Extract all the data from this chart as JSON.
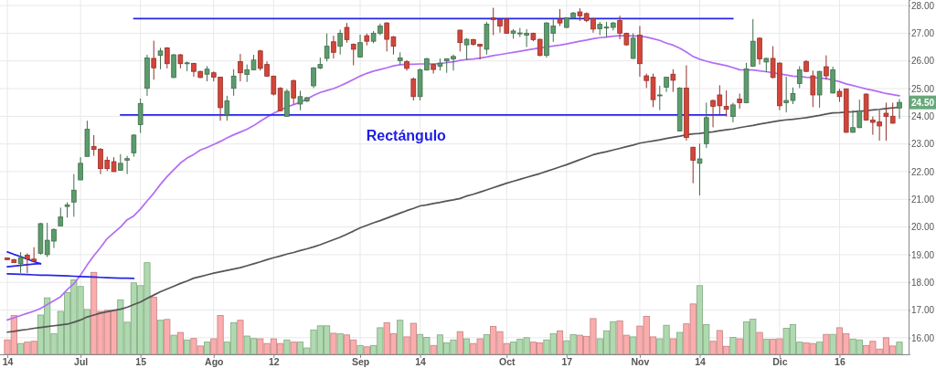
{
  "chart_data": {
    "type": "candlestick",
    "categories": [
      "14",
      null,
      null,
      null,
      null,
      null,
      null,
      null,
      null,
      null,
      null,
      "Jul",
      null,
      null,
      null,
      null,
      null,
      null,
      null,
      null,
      "15",
      null,
      null,
      null,
      null,
      null,
      null,
      null,
      null,
      null,
      null,
      "Ago",
      null,
      null,
      null,
      null,
      null,
      null,
      null,
      null,
      "12",
      null,
      null,
      null,
      null,
      null,
      null,
      null,
      null,
      null,
      null,
      null,
      null,
      "Sep",
      null,
      null,
      null,
      null,
      null,
      null,
      null,
      null,
      "14",
      null,
      null,
      null,
      null,
      null,
      null,
      null,
      null,
      null,
      null,
      null,
      null,
      "Oct",
      null,
      null,
      null,
      null,
      null,
      null,
      null,
      null,
      "17",
      null,
      null,
      null,
      null,
      null,
      null,
      null,
      null,
      null,
      null,
      "Nov",
      null,
      null,
      null,
      null,
      null,
      null,
      null,
      null,
      "14",
      null,
      null,
      null,
      null,
      null,
      null,
      null,
      null,
      null,
      null,
      null,
      "Dic",
      null,
      null,
      null,
      null,
      null,
      null,
      null,
      null,
      "16",
      null,
      null,
      null,
      null,
      null,
      null,
      null,
      null,
      null
    ],
    "ohlc": [
      [
        18.88,
        18.9,
        18.8,
        18.82
      ],
      [
        18.82,
        18.85,
        18.7,
        18.71
      ],
      [
        18.67,
        19.09,
        18.34,
        18.89
      ],
      [
        18.98,
        19.05,
        18.34,
        18.84
      ],
      [
        18.84,
        19.27,
        18.76,
        18.76
      ],
      [
        19.05,
        20.15,
        19.0,
        20.12
      ],
      [
        19.0,
        20.15,
        18.91,
        19.52
      ],
      [
        19.49,
        19.95,
        19.24,
        19.91
      ],
      [
        20.04,
        20.7,
        20.04,
        20.36
      ],
      [
        20.74,
        20.89,
        20.34,
        20.8
      ],
      [
        20.9,
        21.91,
        20.37,
        21.33
      ],
      [
        21.7,
        22.52,
        21.7,
        22.3
      ],
      [
        22.55,
        23.84,
        22.55,
        23.53
      ],
      [
        22.91,
        23.32,
        22.57,
        22.8
      ],
      [
        22.81,
        22.85,
        21.91,
        22.11
      ],
      [
        22.41,
        22.54,
        22.02,
        22.11
      ],
      [
        22.36,
        22.52,
        22.0,
        22.0
      ],
      [
        22.05,
        22.63,
        22.05,
        22.3
      ],
      [
        22.41,
        22.57,
        21.91,
        22.47
      ],
      [
        22.68,
        23.35,
        22.54,
        23.32
      ],
      [
        23.7,
        24.64,
        23.4,
        24.46
      ],
      [
        25.01,
        26.22,
        24.74,
        26.11
      ],
      [
        26.09,
        26.73,
        25.32,
        25.75
      ],
      [
        26.2,
        26.47,
        25.7,
        26.36
      ],
      [
        26.47,
        26.5,
        25.73,
        25.9
      ],
      [
        25.4,
        26.25,
        25.38,
        26.22
      ],
      [
        26.22,
        26.25,
        25.73,
        25.9
      ],
      [
        25.92,
        25.98,
        25.63,
        25.93
      ],
      [
        25.91,
        25.93,
        25.43,
        25.62
      ],
      [
        25.62,
        25.64,
        25.38,
        25.4
      ],
      [
        25.52,
        25.81,
        25.26,
        25.7
      ],
      [
        25.57,
        25.62,
        25.26,
        25.41
      ],
      [
        25.41,
        25.43,
        23.84,
        24.31
      ],
      [
        24.05,
        24.74,
        23.84,
        24.56
      ],
      [
        25.01,
        25.7,
        24.74,
        25.45
      ],
      [
        25.97,
        26.25,
        25.26,
        25.57
      ],
      [
        25.51,
        25.87,
        25.24,
        25.68
      ],
      [
        25.68,
        26.22,
        25.66,
        26.03
      ],
      [
        26.36,
        26.4,
        25.65,
        25.73
      ],
      [
        25.87,
        25.98,
        25.42,
        25.45
      ],
      [
        25.45,
        25.47,
        24.75,
        24.8
      ],
      [
        25.01,
        25.05,
        24.18,
        24.2
      ],
      [
        24.0,
        24.98,
        23.98,
        24.9
      ],
      [
        25.29,
        25.32,
        24.44,
        24.66
      ],
      [
        24.44,
        24.92,
        24.22,
        24.71
      ],
      [
        24.55,
        24.7,
        24.51,
        24.67
      ],
      [
        25.1,
        25.77,
        25.02,
        25.75
      ],
      [
        25.74,
        26.12,
        25.7,
        25.87
      ],
      [
        26.09,
        26.99,
        25.98,
        26.53
      ],
      [
        26.69,
        26.91,
        26.09,
        26.31
      ],
      [
        26.53,
        27.13,
        26.23,
        27.0
      ],
      [
        27.21,
        27.37,
        26.66,
        26.77
      ],
      [
        26.6,
        26.63,
        25.84,
        26.42
      ],
      [
        26.14,
        26.95,
        26.12,
        26.66
      ],
      [
        26.91,
        26.99,
        26.56,
        26.71
      ],
      [
        26.71,
        27.08,
        26.64,
        27.0
      ],
      [
        27.0,
        27.35,
        26.93,
        27.26
      ],
      [
        27.37,
        27.4,
        26.34,
        26.78
      ],
      [
        26.87,
        26.9,
        26.23,
        26.53
      ],
      [
        26.01,
        26.31,
        25.87,
        26.11
      ],
      [
        25.97,
        26.03,
        25.65,
        25.73
      ],
      [
        25.35,
        25.4,
        24.57,
        24.71
      ],
      [
        24.71,
        25.73,
        24.57,
        25.68
      ],
      [
        25.67,
        26.11,
        25.65,
        26.08
      ],
      [
        25.87,
        25.9,
        25.54,
        25.69
      ],
      [
        25.81,
        26.09,
        25.65,
        25.92
      ],
      [
        26.0,
        26.09,
        25.57,
        26.08
      ],
      [
        26.07,
        26.23,
        25.65,
        26.16
      ],
      [
        27.11,
        27.13,
        26.34,
        26.66
      ],
      [
        26.58,
        26.82,
        26.03,
        26.78
      ],
      [
        26.77,
        26.8,
        26.55,
        26.6
      ],
      [
        26.6,
        26.62,
        26.05,
        26.53
      ],
      [
        26.42,
        27.41,
        26.23,
        27.33
      ],
      [
        27.55,
        27.92,
        26.93,
        27.49
      ],
      [
        27.49,
        27.52,
        27.02,
        27.26
      ],
      [
        27.51,
        27.55,
        26.98,
        27.0
      ],
      [
        27.0,
        27.15,
        26.8,
        27.08
      ],
      [
        27.0,
        27.19,
        26.86,
        27.01
      ],
      [
        26.93,
        27.15,
        26.5,
        27.0
      ],
      [
        27.0,
        27.02,
        26.71,
        26.77
      ],
      [
        26.78,
        26.8,
        26.16,
        26.2
      ],
      [
        26.2,
        27.4,
        26.12,
        27.37
      ],
      [
        27.0,
        27.55,
        26.69,
        27.26
      ],
      [
        27.51,
        27.87,
        27.26,
        27.37
      ],
      [
        27.21,
        27.58,
        27.18,
        27.55
      ],
      [
        27.55,
        27.77,
        27.52,
        27.73
      ],
      [
        27.77,
        27.9,
        27.44,
        27.63
      ],
      [
        27.71,
        27.75,
        27.4,
        27.46
      ],
      [
        27.52,
        27.55,
        27.02,
        27.15
      ],
      [
        27.16,
        27.41,
        26.93,
        27.32
      ],
      [
        27.21,
        27.41,
        26.86,
        27.22
      ],
      [
        27.21,
        27.41,
        27.1,
        27.37
      ],
      [
        27.46,
        27.63,
        26.78,
        27.0
      ],
      [
        27.0,
        27.02,
        26.55,
        26.58
      ],
      [
        26.09,
        27.0,
        26.07,
        26.82
      ],
      [
        26.93,
        27.26,
        25.43,
        25.9
      ],
      [
        25.46,
        25.54,
        25.02,
        25.29
      ],
      [
        25.41,
        25.54,
        24.33,
        24.6
      ],
      [
        24.76,
        25.1,
        24.22,
        24.77
      ],
      [
        25.05,
        25.43,
        24.88,
        25.41
      ],
      [
        25.52,
        25.7,
        24.88,
        25.3
      ],
      [
        23.47,
        25.05,
        23.45,
        25.02
      ],
      [
        25.02,
        25.84,
        23.12,
        23.23
      ],
      [
        22.88,
        22.9,
        21.58,
        22.41
      ],
      [
        22.3,
        23.01,
        21.14,
        22.46
      ],
      [
        23.01,
        24.49,
        22.85,
        23.95
      ],
      [
        24.57,
        24.6,
        23.6,
        24.36
      ],
      [
        24.77,
        25.12,
        24.05,
        24.38
      ],
      [
        24.36,
        24.93,
        23.99,
        24.25
      ],
      [
        23.99,
        24.49,
        23.78,
        24.41
      ],
      [
        24.62,
        24.82,
        24.27,
        24.49
      ],
      [
        24.49,
        25.93,
        24.47,
        25.71
      ],
      [
        25.81,
        27.51,
        25.78,
        26.71
      ],
      [
        26.82,
        26.85,
        25.87,
        26.07
      ],
      [
        25.96,
        26.11,
        25.59,
        26.09
      ],
      [
        26.09,
        26.53,
        25.37,
        25.4
      ],
      [
        25.92,
        25.95,
        24.22,
        24.38
      ],
      [
        24.49,
        25.43,
        24.14,
        24.57
      ],
      [
        24.57,
        25.04,
        24.44,
        24.82
      ],
      [
        25.18,
        25.81,
        25.02,
        25.68
      ],
      [
        25.98,
        26.03,
        25.6,
        25.62
      ],
      [
        25.46,
        25.65,
        24.33,
        24.77
      ],
      [
        24.77,
        25.64,
        24.31,
        25.62
      ],
      [
        25.79,
        26.2,
        25.32,
        25.46
      ],
      [
        24.84,
        25.79,
        24.82,
        25.68
      ],
      [
        24.9,
        24.99,
        24.52,
        24.71
      ],
      [
        24.99,
        25.0,
        23.4,
        23.42
      ],
      [
        23.42,
        24.22,
        23.4,
        23.59
      ],
      [
        23.59,
        24.6,
        23.57,
        24.2
      ],
      [
        24.8,
        24.83,
        23.84,
        23.86
      ],
      [
        23.86,
        23.99,
        23.33,
        23.78
      ],
      [
        23.8,
        24.22,
        23.12,
        23.65
      ],
      [
        24.11,
        24.49,
        23.12,
        23.99
      ],
      [
        24.0,
        24.49,
        23.73,
        23.75
      ],
      [
        24.3,
        24.62,
        23.91,
        24.5
      ]
    ],
    "colors": [
      "#d4453a",
      "#d4453a",
      "#5b9c6c",
      "#d4453a",
      "#d4453a",
      "#5b9c6c",
      "#5b9c6c",
      "#5b9c6c",
      "#5b9c6c",
      "#5b9c6c",
      "#5b9c6c",
      "#5b9c6c",
      "#5b9c6c",
      "#d4453a",
      "#d4453a",
      "#d4453a",
      "#d4453a",
      "#5b9c6c",
      "#5b9c6c",
      "#5b9c6c",
      "#5b9c6c",
      "#5b9c6c",
      "#d4453a",
      "#5b9c6c",
      "#d4453a",
      "#5b9c6c",
      "#d4453a",
      "#5b9c6c",
      "#d4453a",
      "#d4453a",
      "#5b9c6c",
      "#d4453a",
      "#d4453a",
      "#5b9c6c",
      "#5b9c6c",
      "#d4453a",
      "#5b9c6c",
      "#5b9c6c",
      "#d4453a",
      "#d4453a",
      "#d4453a",
      "#d4453a",
      "#5b9c6c",
      "#d4453a",
      "#5b9c6c",
      "#5b9c6c",
      "#5b9c6c",
      "#5b9c6c",
      "#5b9c6c",
      "#d4453a",
      "#5b9c6c",
      "#d4453a",
      "#d4453a",
      "#5b9c6c",
      "#d4453a",
      "#5b9c6c",
      "#5b9c6c",
      "#d4453a",
      "#d4453a",
      "#5b9c6c",
      "#d4453a",
      "#d4453a",
      "#5b9c6c",
      "#5b9c6c",
      "#d4453a",
      "#5b9c6c",
      "#5b9c6c",
      "#5b9c6c",
      "#d4453a",
      "#5b9c6c",
      "#d4453a",
      "#d4453a",
      "#5b9c6c",
      "#d4453a",
      "#d4453a",
      "#d4453a",
      "#5b9c6c",
      "#5b9c6c",
      "#5b9c6c",
      "#d4453a",
      "#d4453a",
      "#5b9c6c",
      "#5b9c6c",
      "#d4453a",
      "#5b9c6c",
      "#5b9c6c",
      "#d4453a",
      "#d4453a",
      "#d4453a",
      "#5b9c6c",
      "#5b9c6c",
      "#5b9c6c",
      "#d4453a",
      "#d4453a",
      "#5b9c6c",
      "#d4453a",
      "#d4453a",
      "#d4453a",
      "#5b9c6c",
      "#5b9c6c",
      "#d4453a",
      "#5b9c6c",
      "#d4453a",
      "#d4453a",
      "#5b9c6c",
      "#5b9c6c",
      "#d4453a",
      "#d4453a",
      "#d4453a",
      "#5b9c6c",
      "#d4453a",
      "#5b9c6c",
      "#5b9c6c",
      "#d4453a",
      "#5b9c6c",
      "#d4453a",
      "#d4453a",
      "#5b9c6c",
      "#5b9c6c",
      "#5b9c6c",
      "#d4453a",
      "#d4453a",
      "#5b9c6c",
      "#d4453a",
      "#5b9c6c",
      "#d4453a",
      "#d4453a",
      "#5b9c6c",
      "#5b9c6c",
      "#d4453a",
      "#d4453a",
      "#d4453a",
      "#d4453a",
      "#d4453a",
      "#5b9c6c"
    ],
    "series": [
      {
        "type": "bar",
        "values": [
          15.92,
          16.8,
          15.79,
          15.84,
          15.87,
          16.82,
          17.44,
          16.14,
          16.95,
          17.63,
          18.09,
          17.85,
          17.02,
          18.36,
          16.95,
          16.99,
          16.99,
          17.37,
          16.56,
          17.98,
          17.88,
          18.71,
          17.46,
          16.63,
          16.66,
          16.09,
          16.19,
          15.92,
          15.97,
          15.7,
          15.84,
          15.96,
          16.8,
          15.84,
          16.54,
          16.63,
          16.06,
          15.97,
          15.96,
          15.79,
          15.96,
          15.79,
          15.92,
          15.84,
          15.84,
          15.63,
          16.28,
          16.43,
          16.43,
          16.16,
          16.14,
          16.1,
          15.92,
          15.72,
          15.67,
          15.72,
          16.36,
          16.54,
          16.14,
          16.63,
          16.03,
          16.52,
          16.12,
          16.01,
          15.72,
          16.1,
          15.81,
          15.92,
          16.22,
          15.96,
          15.79,
          15.96,
          16.11,
          16.41,
          16.22,
          15.79,
          15.84,
          15.94,
          16.0,
          15.84,
          15.81,
          15.92,
          16.14,
          16.25,
          15.89,
          16.11,
          16.09,
          16.05,
          16.69,
          15.96,
          16.25,
          16.58,
          16.61,
          16.09,
          16.03,
          16.42,
          16.77,
          16.03,
          15.96,
          16.45,
          15.96,
          16.19,
          16.5,
          17.22,
          17.88,
          16.47,
          15.87,
          16.26,
          15.69,
          16.01,
          15.96,
          16.57,
          16.67,
          16.19,
          15.94,
          15.94,
          15.96,
          16.34,
          16.47,
          15.84,
          15.81,
          15.79,
          15.84,
          16.12,
          16.12,
          16.36,
          16.14,
          15.95,
          15.92,
          15.72,
          15.87,
          15.59,
          16.0,
          15.7,
          15.84
        ],
        "colors": [
          "#fba4a4",
          "#fba4a4",
          "#a6d6a6",
          "#fba4a4",
          "#fba4a4",
          "#a6d6a6",
          "#a6d6a6",
          "#a6d6a6",
          "#a6d6a6",
          "#a6d6a6",
          "#a6d6a6",
          "#a6d6a6",
          "#a6d6a6",
          "#fba4a4",
          "#fba4a4",
          "#fba4a4",
          "#fba4a4",
          "#a6d6a6",
          "#a6d6a6",
          "#a6d6a6",
          "#a6d6a6",
          "#a6d6a6",
          "#fba4a4",
          "#a6d6a6",
          "#fba4a4",
          "#a6d6a6",
          "#fba4a4",
          "#a6d6a6",
          "#fba4a4",
          "#fba4a4",
          "#a6d6a6",
          "#fba4a4",
          "#fba4a4",
          "#a6d6a6",
          "#a6d6a6",
          "#fba4a4",
          "#a6d6a6",
          "#a6d6a6",
          "#fba4a4",
          "#fba4a4",
          "#fba4a4",
          "#fba4a4",
          "#a6d6a6",
          "#fba4a4",
          "#a6d6a6",
          "#a6d6a6",
          "#a6d6a6",
          "#a6d6a6",
          "#a6d6a6",
          "#fba4a4",
          "#a6d6a6",
          "#fba4a4",
          "#fba4a4",
          "#a6d6a6",
          "#fba4a4",
          "#a6d6a6",
          "#a6d6a6",
          "#fba4a4",
          "#fba4a4",
          "#a6d6a6",
          "#fba4a4",
          "#fba4a4",
          "#a6d6a6",
          "#a6d6a6",
          "#fba4a4",
          "#a6d6a6",
          "#a6d6a6",
          "#a6d6a6",
          "#fba4a4",
          "#a6d6a6",
          "#fba4a4",
          "#fba4a4",
          "#a6d6a6",
          "#fba4a4",
          "#fba4a4",
          "#fba4a4",
          "#a6d6a6",
          "#a6d6a6",
          "#a6d6a6",
          "#fba4a4",
          "#fba4a4",
          "#a6d6a6",
          "#a6d6a6",
          "#fba4a4",
          "#a6d6a6",
          "#a6d6a6",
          "#fba4a4",
          "#fba4a4",
          "#fba4a4",
          "#a6d6a6",
          "#a6d6a6",
          "#a6d6a6",
          "#fba4a4",
          "#fba4a4",
          "#a6d6a6",
          "#fba4a4",
          "#fba4a4",
          "#fba4a4",
          "#a6d6a6",
          "#a6d6a6",
          "#fba4a4",
          "#a6d6a6",
          "#fba4a4",
          "#fba4a4",
          "#a6d6a6",
          "#a6d6a6",
          "#fba4a4",
          "#fba4a4",
          "#fba4a4",
          "#a6d6a6",
          "#fba4a4",
          "#a6d6a6",
          "#a6d6a6",
          "#fba4a4",
          "#a6d6a6",
          "#fba4a4",
          "#fba4a4",
          "#a6d6a6",
          "#a6d6a6",
          "#a6d6a6",
          "#fba4a4",
          "#fba4a4",
          "#a6d6a6",
          "#fba4a4",
          "#a6d6a6",
          "#fba4a4",
          "#fba4a4",
          "#a6d6a6",
          "#a6d6a6",
          "#fba4a4",
          "#fba4a4",
          "#fba4a4",
          "#fba4a4",
          "#fba4a4",
          "#a6d6a6"
        ]
      },
      {
        "type": "line",
        "color": "#b36cf5",
        "values": [
          16.64,
          16.72,
          16.8,
          16.88,
          16.96,
          17.06,
          17.2,
          17.34,
          17.48,
          17.74,
          17.95,
          18.26,
          18.63,
          18.96,
          19.26,
          19.58,
          19.79,
          20.0,
          20.26,
          20.4,
          20.65,
          20.94,
          21.22,
          21.54,
          21.82,
          22.07,
          22.31,
          22.49,
          22.62,
          22.78,
          22.87,
          22.98,
          23.09,
          23.22,
          23.33,
          23.43,
          23.53,
          23.66,
          23.82,
          23.97,
          24.11,
          24.22,
          24.34,
          24.42,
          24.51,
          24.62,
          24.75,
          24.86,
          24.93,
          25.0,
          25.1,
          25.21,
          25.33,
          25.45,
          25.55,
          25.63,
          25.69,
          25.75,
          25.82,
          25.86,
          25.88,
          25.88,
          25.89,
          25.89,
          25.89,
          25.9,
          25.94,
          25.97,
          26.02,
          26.05,
          26.07,
          26.1,
          26.14,
          26.19,
          26.23,
          26.27,
          26.31,
          26.35,
          26.39,
          26.43,
          26.47,
          26.5,
          26.54,
          26.57,
          26.61,
          26.66,
          26.71,
          26.75,
          26.8,
          26.84,
          26.86,
          26.89,
          26.91,
          26.91,
          26.9,
          26.89,
          26.86,
          26.8,
          26.74,
          26.64,
          26.57,
          26.46,
          26.32,
          26.16,
          26.06,
          25.99,
          25.93,
          25.88,
          25.83,
          25.76,
          25.68,
          25.67,
          25.67,
          25.64,
          25.61,
          25.57,
          25.53,
          25.49,
          25.45,
          25.43,
          25.41,
          25.4,
          25.38,
          25.36,
          25.31,
          25.25,
          25.17,
          25.11,
          25.05,
          24.99,
          24.94,
          24.88,
          24.82,
          24.78,
          24.74
        ]
      },
      {
        "type": "line",
        "color": "#555555",
        "values": [
          16.2,
          16.23,
          16.27,
          16.3,
          16.34,
          16.37,
          16.4,
          16.43,
          16.46,
          16.49,
          16.56,
          16.64,
          16.75,
          16.82,
          16.89,
          16.94,
          16.99,
          17.03,
          17.1,
          17.2,
          17.29,
          17.42,
          17.54,
          17.66,
          17.76,
          17.86,
          17.96,
          18.05,
          18.15,
          18.21,
          18.27,
          18.33,
          18.38,
          18.43,
          18.48,
          18.53,
          18.6,
          18.67,
          18.74,
          18.82,
          18.89,
          18.95,
          19.02,
          19.08,
          19.15,
          19.21,
          19.28,
          19.36,
          19.45,
          19.54,
          19.63,
          19.74,
          19.85,
          19.97,
          20.06,
          20.15,
          20.23,
          20.32,
          20.41,
          20.5,
          20.59,
          20.67,
          20.76,
          20.8,
          20.85,
          20.89,
          20.94,
          20.98,
          21.03,
          21.12,
          21.18,
          21.26,
          21.34,
          21.42,
          21.5,
          21.58,
          21.65,
          21.72,
          21.79,
          21.86,
          21.93,
          22.01,
          22.09,
          22.17,
          22.25,
          22.34,
          22.43,
          22.52,
          22.61,
          22.67,
          22.72,
          22.78,
          22.84,
          22.9,
          22.96,
          23.03,
          23.07,
          23.11,
          23.15,
          23.2,
          23.24,
          23.28,
          23.33,
          23.36,
          23.38,
          23.41,
          23.44,
          23.48,
          23.51,
          23.54,
          23.59,
          23.63,
          23.67,
          23.72,
          23.76,
          23.8,
          23.84,
          23.87,
          23.89,
          23.92,
          23.95,
          23.99,
          24.03,
          24.08,
          24.12,
          24.13,
          24.15,
          24.16,
          24.18,
          24.2,
          24.23,
          24.25,
          24.28,
          24.3,
          24.33
        ]
      },
      {
        "type": "line",
        "color": "#2424e8",
        "values": [
          null,
          null,
          null,
          null,
          null,
          null,
          null,
          null,
          null,
          null,
          null,
          null,
          null,
          null,
          null,
          null,
          null,
          null,
          null,
          27.53,
          27.53,
          27.53,
          27.53,
          27.53,
          27.53,
          27.53,
          27.53,
          27.53,
          27.53,
          27.53,
          27.53,
          27.53,
          27.53,
          27.53,
          27.53,
          27.53,
          27.53,
          27.53,
          27.53,
          27.53,
          27.53,
          27.53,
          27.53,
          27.53,
          27.53,
          27.53,
          27.53,
          27.53,
          27.53,
          27.53,
          27.53,
          27.53,
          27.53,
          27.53,
          27.53,
          27.53,
          27.53,
          27.53,
          27.53,
          27.53,
          27.53,
          27.53,
          27.53,
          27.53,
          27.53,
          27.53,
          27.53,
          27.53,
          27.53,
          27.53,
          27.53,
          27.53,
          27.53,
          27.53,
          27.53,
          27.53,
          27.53,
          27.53,
          27.53,
          27.53,
          27.53,
          27.53,
          27.53,
          27.53,
          27.53,
          27.53,
          27.53,
          27.53,
          27.53,
          27.53,
          27.53,
          27.53,
          27.53,
          27.53,
          27.53,
          27.53,
          27.53,
          27.53,
          27.53,
          27.53,
          27.53,
          27.53,
          27.53,
          27.53,
          27.53,
          27.53,
          27.53,
          27.53,
          27.53,
          27.53,
          null,
          null,
          null,
          null,
          null,
          null,
          null,
          null,
          null,
          null,
          null,
          null,
          null,
          null,
          null,
          null,
          null,
          null,
          null,
          null,
          null,
          null,
          null,
          null,
          null
        ]
      },
      {
        "type": "line",
        "color": "#2424e8",
        "values": [
          null,
          null,
          null,
          null,
          null,
          null,
          null,
          null,
          null,
          null,
          null,
          null,
          null,
          null,
          null,
          null,
          null,
          24.05,
          24.05,
          24.05,
          24.05,
          24.05,
          24.05,
          24.05,
          24.05,
          24.05,
          24.05,
          24.05,
          24.05,
          24.05,
          24.05,
          24.05,
          24.05,
          24.05,
          24.05,
          24.05,
          24.05,
          24.05,
          24.05,
          24.05,
          24.05,
          24.05,
          24.05,
          24.05,
          24.05,
          24.05,
          24.05,
          24.05,
          24.05,
          24.05,
          24.05,
          24.05,
          24.05,
          24.05,
          24.05,
          24.05,
          24.05,
          24.05,
          24.05,
          24.05,
          24.05,
          24.05,
          24.05,
          24.05,
          24.05,
          24.05,
          24.05,
          24.05,
          24.05,
          24.05,
          24.05,
          24.05,
          24.05,
          24.05,
          24.05,
          24.05,
          24.05,
          24.05,
          24.05,
          24.05,
          24.05,
          24.05,
          24.05,
          24.05,
          24.05,
          24.05,
          24.05,
          24.05,
          24.05,
          24.05,
          24.05,
          24.05,
          24.05,
          24.05,
          24.05,
          24.05,
          24.05,
          24.05,
          24.05,
          24.05,
          24.05,
          24.05,
          24.05,
          24.05,
          24.05,
          24.05,
          24.05,
          24.05,
          24.05,
          null,
          null,
          null,
          null,
          null,
          null,
          null,
          null,
          null,
          null,
          null,
          null,
          null,
          null,
          null,
          null,
          null,
          null,
          null,
          null,
          null,
          null,
          null,
          null,
          null,
          null
        ]
      },
      {
        "type": "line",
        "color": "#2424e8",
        "values": [
          19.1,
          19.01,
          18.93,
          18.84,
          18.75,
          18.67,
          null,
          null,
          null,
          null,
          null,
          null,
          null,
          null,
          null,
          null,
          null,
          null,
          null,
          null,
          null,
          null,
          null,
          null,
          null,
          null,
          null,
          null,
          null,
          null,
          null,
          null,
          null,
          null,
          null,
          null,
          null,
          null,
          null,
          null,
          null,
          null,
          null,
          null,
          null,
          null,
          null,
          null,
          null,
          null,
          null,
          null,
          null,
          null,
          null,
          null,
          null,
          null,
          null,
          null,
          null,
          null,
          null,
          null,
          null,
          null,
          null,
          null,
          null,
          null,
          null,
          null,
          null,
          null,
          null,
          null,
          null,
          null,
          null,
          null,
          null,
          null,
          null,
          null,
          null,
          null,
          null,
          null,
          null,
          null,
          null,
          null,
          null,
          null,
          null,
          null,
          null,
          null,
          null,
          null,
          null,
          null,
          null,
          null,
          null,
          null,
          null,
          null,
          null,
          null,
          null,
          null,
          null,
          null,
          null,
          null,
          null,
          null,
          null,
          null,
          null,
          null,
          null,
          null,
          null,
          null,
          null,
          null,
          null,
          null,
          null,
          null,
          null,
          null,
          null
        ]
      },
      {
        "type": "line",
        "color": "#2424e8",
        "values": [
          18.56,
          18.59,
          18.61,
          18.64,
          18.66,
          18.68,
          null,
          null,
          null,
          null,
          null,
          null,
          null,
          null,
          null,
          null,
          null,
          null,
          null,
          null,
          null,
          null,
          null,
          null,
          null,
          null,
          null,
          null,
          null,
          null,
          null,
          null,
          null,
          null,
          null,
          null,
          null,
          null,
          null,
          null,
          null,
          null,
          null,
          null,
          null,
          null,
          null,
          null,
          null,
          null,
          null,
          null,
          null,
          null,
          null,
          null,
          null,
          null,
          null,
          null,
          null,
          null,
          null,
          null,
          null,
          null,
          null,
          null,
          null,
          null,
          null,
          null,
          null,
          null,
          null,
          null,
          null,
          null,
          null,
          null,
          null,
          null,
          null,
          null,
          null,
          null,
          null,
          null,
          null,
          null,
          null,
          null,
          null,
          null,
          null,
          null,
          null,
          null,
          null,
          null,
          null,
          null,
          null,
          null,
          null,
          null,
          null,
          null,
          null,
          null,
          null,
          null,
          null,
          null,
          null,
          null,
          null,
          null,
          null,
          null,
          null,
          null,
          null,
          null,
          null,
          null,
          null,
          null,
          null,
          null,
          null,
          null,
          null,
          null,
          null
        ]
      },
      {
        "type": "line",
        "color": "#2424e8",
        "values": [
          18.31,
          18.3,
          18.29,
          18.28,
          18.27,
          18.26,
          18.26,
          18.25,
          18.24,
          18.23,
          18.22,
          18.21,
          18.2,
          18.19,
          18.18,
          18.17,
          18.16,
          18.15,
          18.15,
          18.14,
          null,
          null,
          null,
          null,
          null,
          null,
          null,
          null,
          null,
          null,
          null,
          null,
          null,
          null,
          null,
          null,
          null,
          null,
          null,
          null,
          null,
          null,
          null,
          null,
          null,
          null,
          null,
          null,
          null,
          null,
          null,
          null,
          null,
          null,
          null,
          null,
          null,
          null,
          null,
          null,
          null,
          null,
          null,
          null,
          null,
          null,
          null,
          null,
          null,
          null,
          null,
          null,
          null,
          null,
          null,
          null,
          null,
          null,
          null,
          null,
          null,
          null,
          null,
          null,
          null,
          null,
          null,
          null,
          null,
          null,
          null,
          null,
          null,
          null,
          null,
          null,
          null,
          null,
          null,
          null,
          null,
          null,
          null,
          null,
          null,
          null,
          null,
          null,
          null,
          null,
          null,
          null,
          null,
          null,
          null,
          null,
          null,
          null,
          null,
          null,
          null,
          null,
          null,
          null,
          null,
          null,
          null,
          null,
          null,
          null,
          null,
          null,
          null,
          null,
          null
        ]
      }
    ],
    "ylim": [
      15.4,
      28.2
    ],
    "yticks": [
      {
        "value": 16,
        "label": "16.00"
      },
      {
        "value": 17,
        "label": "17.00"
      },
      {
        "value": 18,
        "label": "18.00"
      },
      {
        "value": 19,
        "label": "19.00"
      },
      {
        "value": 20,
        "label": "20.00"
      },
      {
        "value": 21,
        "label": "21.00"
      },
      {
        "value": 22,
        "label": "22.00"
      },
      {
        "value": 23,
        "label": "23.00"
      },
      {
        "value": 24,
        "label": "24.00"
      },
      {
        "value": 25,
        "label": "25.00"
      },
      {
        "value": 26,
        "label": "26.00"
      },
      {
        "value": 27,
        "label": "27.00"
      },
      {
        "value": 28,
        "label": "28.00"
      }
    ],
    "grid": true,
    "annotations": [
      "Rectángulo",
      {
        "text": "24.50",
        "y": 24.5
      }
    ]
  }
}
